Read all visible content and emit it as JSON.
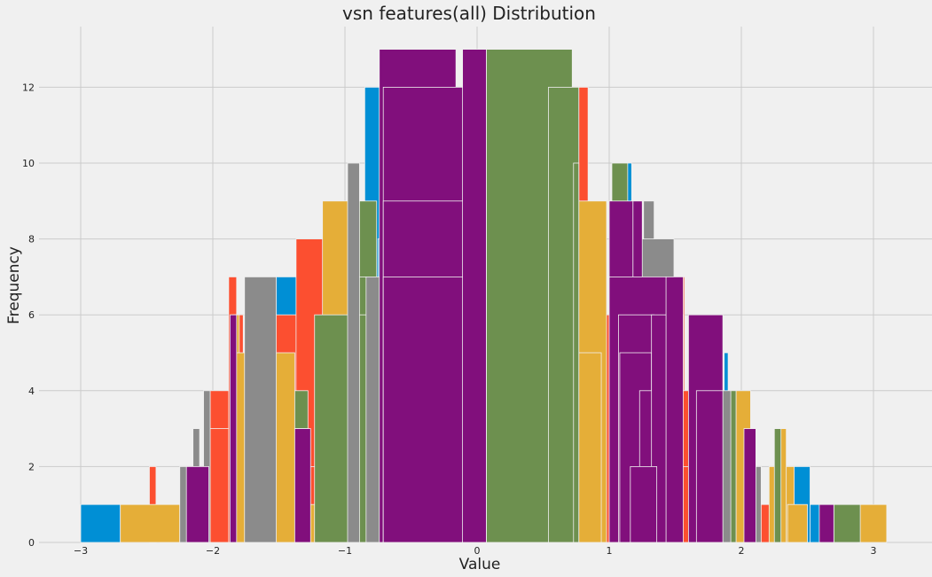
{
  "chart_data": {
    "type": "bar",
    "title": "vsn features(all) Distribution",
    "xlabel": "Value",
    "ylabel": "Frequency",
    "xlim": [
      -3.1,
      3.25
    ],
    "ylim": [
      0,
      13.5
    ],
    "x_ticks": [
      -3,
      -2,
      -1,
      0,
      1,
      2,
      3
    ],
    "x_tick_labels": [
      "−3",
      "−2",
      "−1",
      "0",
      "1",
      "2",
      "3"
    ],
    "y_ticks": [
      0,
      2,
      4,
      6,
      8,
      10,
      12
    ],
    "y_tick_labels": [
      "0",
      "2",
      "4",
      "6",
      "8",
      "10",
      "12"
    ],
    "grid": true,
    "series": [
      {
        "color": "#008fd5",
        "bars": [
          [
            -3.0,
            -2.7,
            1
          ],
          [
            -2.4,
            -2.25,
            1
          ],
          [
            -2.15,
            -2.0,
            2
          ],
          [
            -1.95,
            -1.88,
            4
          ],
          [
            -1.52,
            -1.06,
            7
          ],
          [
            -1.28,
            -0.8,
            4
          ],
          [
            -0.85,
            -0.72,
            12
          ],
          [
            -0.75,
            -0.68,
            8
          ],
          [
            0.1,
            0.67,
            10
          ],
          [
            0.33,
            0.54,
            11
          ],
          [
            0.14,
            0.54,
            12
          ],
          [
            1.03,
            1.17,
            10
          ],
          [
            1.18,
            1.22,
            8
          ],
          [
            1.43,
            1.48,
            4
          ],
          [
            1.66,
            1.86,
            3
          ],
          [
            1.87,
            1.9,
            5
          ],
          [
            1.43,
            2.02,
            3
          ],
          [
            2.33,
            2.52,
            2
          ],
          [
            2.52,
            2.6,
            1
          ]
        ]
      },
      {
        "color": "#fc4f30",
        "bars": [
          [
            -2.48,
            -2.43,
            2
          ],
          [
            -2.02,
            -1.87,
            4
          ],
          [
            -2.02,
            -1.88,
            3
          ],
          [
            -1.88,
            -1.82,
            7
          ],
          [
            -1.84,
            -1.77,
            6
          ],
          [
            -1.72,
            -1.23,
            6
          ],
          [
            -1.37,
            -0.97,
            8
          ],
          [
            -1.37,
            -0.85,
            2
          ],
          [
            -0.73,
            -0.19,
            7
          ],
          [
            -0.09,
            0.15,
            12
          ],
          [
            0.36,
            0.44,
            8
          ],
          [
            0.54,
            1.08,
            6
          ],
          [
            0.67,
            0.73,
            10
          ],
          [
            0.77,
            0.84,
            12
          ],
          [
            1.54,
            1.57,
            7
          ],
          [
            1.42,
            1.56,
            6
          ],
          [
            1.39,
            1.69,
            4
          ],
          [
            1.52,
            1.62,
            2
          ],
          [
            2.08,
            2.34,
            1
          ]
        ]
      },
      {
        "color": "#e5ae38",
        "bars": [
          [
            -2.7,
            -2.25,
            1
          ],
          [
            -1.86,
            -1.8,
            6
          ],
          [
            -1.86,
            -1.38,
            5
          ],
          [
            -1.17,
            -0.96,
            9
          ],
          [
            -1.2,
            -0.72,
            5
          ],
          [
            -1.28,
            -0.79,
            1
          ],
          [
            -0.72,
            -0.2,
            6
          ],
          [
            -0.13,
            0.33,
            12
          ],
          [
            -0.13,
            0.33,
            11
          ],
          [
            -0.13,
            0.33,
            10
          ],
          [
            -0.13,
            0.37,
            8
          ],
          [
            0.66,
            0.98,
            9
          ],
          [
            0.45,
            0.94,
            5
          ],
          [
            1.03,
            1.52,
            2
          ],
          [
            1.62,
            2.1,
            2
          ],
          [
            1.96,
            2.07,
            4
          ],
          [
            2.21,
            2.4,
            2
          ],
          [
            2.35,
            2.5,
            1
          ],
          [
            2.28,
            2.34,
            3
          ],
          [
            2.88,
            3.1,
            1
          ]
        ]
      },
      {
        "color": "#6d904f",
        "bars": [
          [
            -0.96,
            -0.76,
            9
          ],
          [
            -0.96,
            -0.76,
            7
          ],
          [
            -1.23,
            -0.76,
            6
          ],
          [
            -1.38,
            -1.28,
            4
          ],
          [
            0.07,
            0.72,
            13
          ],
          [
            0.54,
            0.77,
            12
          ],
          [
            0.73,
            0.77,
            10
          ],
          [
            1.02,
            1.14,
            10
          ],
          [
            1.92,
            1.96,
            4
          ],
          [
            2.25,
            2.3,
            3
          ],
          [
            2.7,
            2.9,
            1
          ]
        ]
      },
      {
        "color": "#8b8b8b",
        "bars": [
          [
            -2.07,
            -2.02,
            4
          ],
          [
            -2.15,
            -2.1,
            3
          ],
          [
            -2.25,
            -2.14,
            2
          ],
          [
            -1.76,
            -1.52,
            7
          ],
          [
            -0.98,
            -0.89,
            10
          ],
          [
            -1.38,
            -1.28,
            3
          ],
          [
            -0.84,
            -0.73,
            7
          ],
          [
            -0.02,
            0.07,
            9
          ],
          [
            1.26,
            1.34,
            9
          ],
          [
            1.2,
            1.49,
            8
          ],
          [
            1.33,
            1.51,
            5
          ],
          [
            1.38,
            1.44,
            5
          ],
          [
            1.85,
            1.92,
            4
          ],
          [
            2.1,
            2.15,
            2
          ]
        ]
      },
      {
        "color": "#810f7c",
        "bars": [
          [
            -0.74,
            -0.16,
            13
          ],
          [
            -0.71,
            -0.1,
            12
          ],
          [
            -0.71,
            -0.1,
            9
          ],
          [
            -0.71,
            -0.1,
            7
          ],
          [
            -0.11,
            0.07,
            13
          ],
          [
            1.0,
            1.18,
            9
          ],
          [
            1.18,
            1.25,
            9
          ],
          [
            1.0,
            1.44,
            7
          ],
          [
            1.43,
            1.56,
            7
          ],
          [
            1.07,
            1.34,
            6
          ],
          [
            1.08,
            1.32,
            5
          ],
          [
            1.23,
            1.38,
            4
          ],
          [
            1.32,
            1.43,
            6
          ],
          [
            1.6,
            1.86,
            6
          ],
          [
            1.66,
            1.86,
            4
          ],
          [
            1.16,
            1.36,
            2
          ],
          [
            2.02,
            2.11,
            3
          ],
          [
            2.59,
            2.7,
            1
          ],
          [
            -2.2,
            -2.03,
            2
          ],
          [
            -1.87,
            -1.82,
            6
          ],
          [
            -1.38,
            -1.26,
            3
          ]
        ]
      }
    ]
  }
}
